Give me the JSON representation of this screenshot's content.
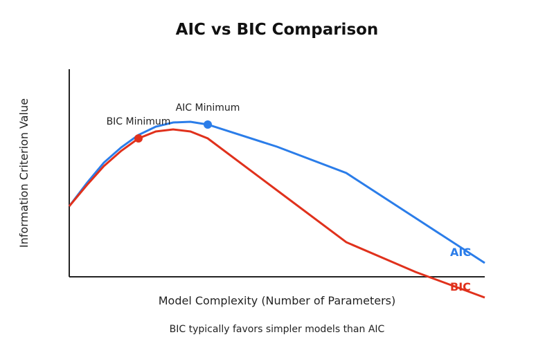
{
  "chart_data": {
    "type": "line",
    "title": "AIC vs BIC Comparison",
    "xlabel": "Model Complexity (Number of Parameters)",
    "ylabel": "Information Criterion Value",
    "caption": "BIC typically favors simpler models than AIC",
    "xlim": [
      0,
      6
    ],
    "ylim": [
      0,
      3
    ],
    "grid": false,
    "x": [
      0,
      0.25,
      0.5,
      0.75,
      1,
      1.25,
      1.5,
      1.75,
      2,
      3,
      4,
      5,
      6
    ],
    "series": [
      {
        "name": "AIC",
        "color": "#2b7de9",
        "values": [
          1.02,
          1.35,
          1.65,
          1.87,
          2.05,
          2.17,
          2.23,
          2.24,
          2.2,
          1.88,
          1.5,
          0.85,
          0.2
        ],
        "minimum": {
          "x": 2,
          "y": 2.2,
          "label": "AIC Minimum"
        }
      },
      {
        "name": "BIC",
        "color": "#e0311c",
        "values": [
          1.02,
          1.32,
          1.6,
          1.82,
          2.0,
          2.1,
          2.13,
          2.1,
          2.0,
          1.25,
          0.5,
          0.07,
          -0.3
        ],
        "minimum": {
          "x": 1,
          "y": 2.0,
          "label": "BIC Minimum"
        }
      }
    ]
  }
}
